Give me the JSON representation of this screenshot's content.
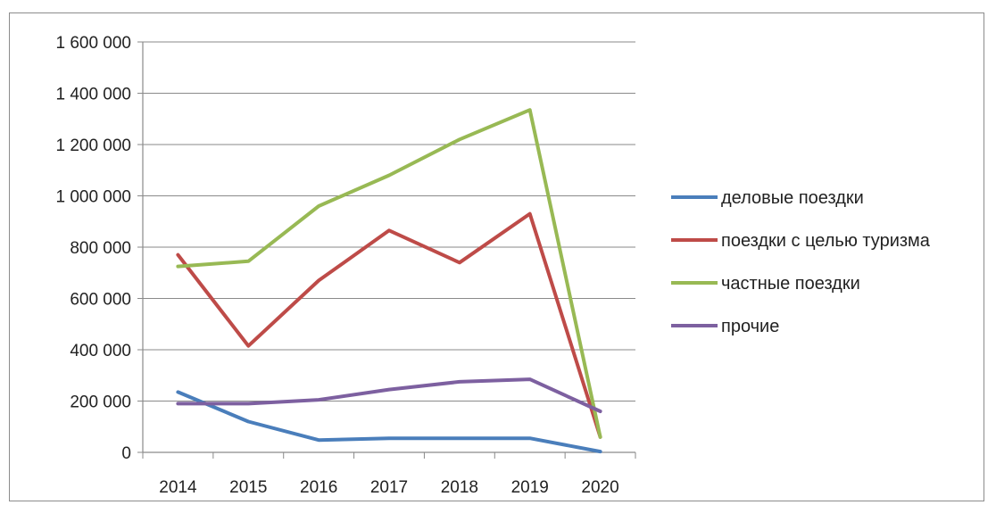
{
  "chart_data": {
    "type": "line",
    "title": "",
    "xlabel": "",
    "ylabel": "",
    "x": [
      "2014",
      "2015",
      "2016",
      "2017",
      "2018",
      "2019",
      "2020"
    ],
    "ylim": [
      0,
      1600000
    ],
    "yticks": [
      0,
      200000,
      400000,
      600000,
      800000,
      1000000,
      1200000,
      1400000,
      1600000
    ],
    "ytick_labels": [
      "0",
      "200 000",
      "400 000",
      "600 000",
      "800 000",
      "1 000 000",
      "1 200 000",
      "1 400 000",
      "1 600 000"
    ],
    "grid": true,
    "legend_position": "right",
    "series": [
      {
        "name": "деловые поездки",
        "color": "#4a7ebb",
        "values": [
          235000,
          120000,
          48000,
          55000,
          55000,
          55000,
          3000
        ]
      },
      {
        "name": "поездки с целью туризма",
        "color": "#be4b48",
        "values": [
          770000,
          415000,
          670000,
          865000,
          740000,
          930000,
          60000
        ]
      },
      {
        "name": "частные поездки",
        "color": "#98b954",
        "values": [
          725000,
          745000,
          960000,
          1080000,
          1220000,
          1335000,
          60000
        ]
      },
      {
        "name": "прочие",
        "color": "#7d60a0",
        "values": [
          190000,
          190000,
          205000,
          245000,
          275000,
          285000,
          160000
        ]
      }
    ]
  }
}
